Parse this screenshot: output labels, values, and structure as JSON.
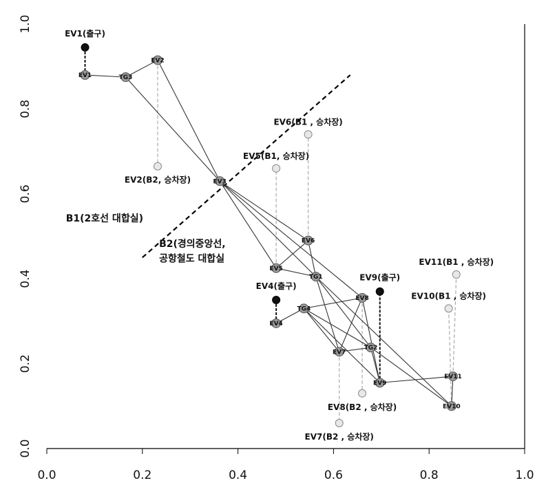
{
  "chart_data": {
    "type": "scatter",
    "xlim": [
      0.0,
      1.0
    ],
    "ylim": [
      0.0,
      1.0
    ],
    "grid": false,
    "x_ticks": [
      "0.0",
      "0.2",
      "0.4",
      "0.6",
      "0.8",
      "1.0"
    ],
    "y_ticks": [
      "0.0",
      "0.2",
      "0.4",
      "0.6",
      "0.8",
      "1.0"
    ],
    "nodes": [
      {
        "id": "EV1",
        "x": 0.08,
        "y": 0.88,
        "label": "EV1"
      },
      {
        "id": "TG3",
        "x": 0.165,
        "y": 0.875,
        "label": "TG3"
      },
      {
        "id": "EV2",
        "x": 0.232,
        "y": 0.915,
        "label": "EV2"
      },
      {
        "id": "EV3",
        "x": 0.362,
        "y": 0.63,
        "label": "EV3"
      },
      {
        "id": "EV5",
        "x": 0.48,
        "y": 0.425,
        "label": "EV5"
      },
      {
        "id": "EV6",
        "x": 0.547,
        "y": 0.49,
        "label": "EV6"
      },
      {
        "id": "TG1",
        "x": 0.563,
        "y": 0.405,
        "label": "TG1"
      },
      {
        "id": "EV4",
        "x": 0.48,
        "y": 0.295,
        "label": "EV4"
      },
      {
        "id": "TG4",
        "x": 0.538,
        "y": 0.33,
        "label": "TG4"
      },
      {
        "id": "EV8",
        "x": 0.66,
        "y": 0.355,
        "label": "EV8"
      },
      {
        "id": "EV7",
        "x": 0.612,
        "y": 0.228,
        "label": "EV7"
      },
      {
        "id": "TG2",
        "x": 0.678,
        "y": 0.238,
        "label": "TG2"
      },
      {
        "id": "EV9",
        "x": 0.697,
        "y": 0.155,
        "label": "EV9"
      },
      {
        "id": "EV11",
        "x": 0.85,
        "y": 0.17,
        "label": "EV11"
      },
      {
        "id": "EV10",
        "x": 0.847,
        "y": 0.1,
        "label": "EV10"
      }
    ],
    "edges": [
      [
        "EV1",
        "TG3"
      ],
      [
        "TG3",
        "EV2"
      ],
      [
        "TG3",
        "EV3"
      ],
      [
        "EV2",
        "EV3"
      ],
      [
        "EV3",
        "EV5"
      ],
      [
        "EV3",
        "EV6"
      ],
      [
        "EV3",
        "TG1"
      ],
      [
        "EV3",
        "EV8"
      ],
      [
        "EV5",
        "EV6"
      ],
      [
        "EV5",
        "TG1"
      ],
      [
        "EV6",
        "TG1"
      ],
      [
        "TG1",
        "EV7"
      ],
      [
        "TG1",
        "TG2"
      ],
      [
        "TG1",
        "EV10"
      ],
      [
        "EV4",
        "TG4"
      ],
      [
        "TG4",
        "EV8"
      ],
      [
        "TG4",
        "EV7"
      ],
      [
        "TG4",
        "EV9"
      ],
      [
        "TG4",
        "TG2"
      ],
      [
        "EV8",
        "EV7"
      ],
      [
        "EV8",
        "EV9"
      ],
      [
        "EV7",
        "TG2"
      ],
      [
        "TG2",
        "EV9"
      ],
      [
        "TG2",
        "EV10"
      ],
      [
        "EV9",
        "EV11"
      ],
      [
        "EV11",
        "EV10"
      ]
    ],
    "exits": [
      {
        "id": "EV1",
        "x": 0.08,
        "y": 0.945,
        "label": "EV1(출구)",
        "label_pos": "above"
      },
      {
        "id": "EV4",
        "x": 0.48,
        "y": 0.35,
        "label": "EV4(출구)",
        "label_pos": "above"
      },
      {
        "id": "EV9",
        "x": 0.697,
        "y": 0.37,
        "label": "EV9(출구)",
        "label_pos": "above"
      }
    ],
    "platforms": [
      {
        "id": "EV2",
        "x": 0.232,
        "y": 0.665,
        "label": "EV2(B2, 승차장)",
        "label_pos": "below"
      },
      {
        "id": "EV5",
        "x": 0.48,
        "y": 0.66,
        "label": "EV5(B1, 승차장)",
        "label_pos": "above"
      },
      {
        "id": "EV6",
        "x": 0.547,
        "y": 0.74,
        "label": "EV6(B1 , 승차장)",
        "label_pos": "above"
      },
      {
        "id": "EV8",
        "x": 0.66,
        "y": 0.13,
        "label": "EV8(B2 , 승차장)",
        "label_pos": "below"
      },
      {
        "id": "EV7",
        "x": 0.612,
        "y": 0.06,
        "label": "EV7(B2 , 승차장)",
        "label_pos": "below"
      },
      {
        "id": "EV10",
        "x": 0.841,
        "y": 0.33,
        "label": "EV10(B1 , 승차장)",
        "label_pos": "above"
      },
      {
        "id": "EV11",
        "x": 0.857,
        "y": 0.41,
        "label": "EV11(B1 , 승차장)",
        "label_pos": "above"
      }
    ],
    "divider": {
      "x1": 0.2,
      "y1": 0.45,
      "x2": 0.635,
      "y2": 0.88
    },
    "annotations": [
      {
        "text": "B1(2호선 대합실)",
        "x": 0.04,
        "y": 0.535
      },
      {
        "text": "B2(경의중앙선,",
        "x": 0.235,
        "y": 0.475
      },
      {
        "text": "공항철도 대합실",
        "x": 0.235,
        "y": 0.44
      }
    ]
  }
}
